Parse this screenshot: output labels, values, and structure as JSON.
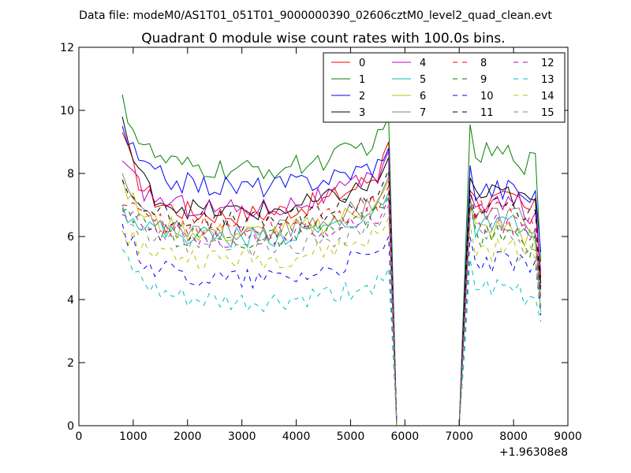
{
  "chart_data": {
    "type": "line",
    "suptitle": "Data file: modeM0/AS1T01_051T01_9000000390_02606cztM0_level2_quad_clean.evt",
    "title": "Quadrant 0 module wise count rates with 100.0s bins.",
    "xlabel": "",
    "ylabel": "",
    "xlim": [
      0,
      9000
    ],
    "ylim": [
      0,
      12
    ],
    "x_offset_label": "+1.96308e8",
    "xticks": [
      0,
      1000,
      2000,
      3000,
      4000,
      5000,
      6000,
      7000,
      8000,
      9000
    ],
    "xtick_labels": [
      "0",
      "1000",
      "2000",
      "3000",
      "4000",
      "5000",
      "6000",
      "7000",
      "8000",
      "9000"
    ],
    "yticks": [
      0,
      2,
      4,
      6,
      8,
      10,
      12
    ],
    "ytick_labels": [
      "0",
      "2",
      "4",
      "6",
      "8",
      "10",
      "12"
    ],
    "legend": {
      "location": "top-right",
      "columns": 4
    },
    "segment1": {
      "x_start": 800,
      "step": 100,
      "count": 50
    },
    "gap": {
      "x": [
        5850,
        5950,
        6050,
        6150,
        6250,
        6350,
        6450,
        6550,
        6650,
        6750,
        6850
      ],
      "value": 0
    },
    "segment2": {
      "x_start": 7000,
      "step": 100,
      "count": 16
    },
    "series": [
      {
        "name": "0",
        "color": "#ff0000",
        "dash": "solid",
        "seg1_start": 9.3,
        "seg1_base": 7.0,
        "seg1_peak": 9.0,
        "seg2_base": 7.1,
        "seg2_end": 4.7
      },
      {
        "name": "1",
        "color": "#008000",
        "dash": "solid",
        "seg1_start": 10.5,
        "seg1_base": 8.4,
        "seg1_peak": 9.8,
        "seg2_base": 8.6,
        "seg2_end": 5.2
      },
      {
        "name": "2",
        "color": "#0000ff",
        "dash": "solid",
        "seg1_start": 9.5,
        "seg1_base": 7.9,
        "seg1_peak": 8.8,
        "seg2_base": 7.5,
        "seg2_end": 5.5
      },
      {
        "name": "3",
        "color": "#000000",
        "dash": "solid",
        "seg1_start": 9.8,
        "seg1_base": 7.1,
        "seg1_peak": 8.5,
        "seg2_base": 7.3,
        "seg2_end": 4.5
      },
      {
        "name": "4",
        "color": "#bf00bf",
        "dash": "solid",
        "seg1_start": 8.4,
        "seg1_base": 7.2,
        "seg1_peak": 8.7,
        "seg2_base": 7.0,
        "seg2_end": 4.9
      },
      {
        "name": "5",
        "color": "#00bfbf",
        "dash": "solid",
        "seg1_start": 7.0,
        "seg1_base": 6.3,
        "seg1_peak": 7.4,
        "seg2_base": 6.3,
        "seg2_end": 3.6
      },
      {
        "name": "6",
        "color": "#bfbf00",
        "dash": "solid",
        "seg1_start": 7.8,
        "seg1_base": 6.4,
        "seg1_peak": 7.8,
        "seg2_base": 6.2,
        "seg2_end": 4.1
      },
      {
        "name": "7",
        "color": "#808080",
        "dash": "solid",
        "seg1_start": 8.0,
        "seg1_base": 6.5,
        "seg1_peak": 7.9,
        "seg2_base": 6.6,
        "seg2_end": 4.3
      },
      {
        "name": "8",
        "color": "#ff0000",
        "dash": "dashed",
        "seg1_start": 7.0,
        "seg1_base": 6.6,
        "seg1_peak": 7.6,
        "seg2_base": 6.8,
        "seg2_end": 4.4
      },
      {
        "name": "9",
        "color": "#008000",
        "dash": "dashed",
        "seg1_start": 6.8,
        "seg1_base": 6.2,
        "seg1_peak": 7.3,
        "seg2_base": 6.0,
        "seg2_end": 3.9
      },
      {
        "name": "10",
        "color": "#0000ff",
        "dash": "dashed",
        "seg1_start": 6.4,
        "seg1_base": 5.0,
        "seg1_peak": 6.0,
        "seg2_base": 5.2,
        "seg2_end": 3.5
      },
      {
        "name": "11",
        "color": "#000000",
        "dash": "dashed",
        "seg1_start": 7.8,
        "seg1_base": 6.8,
        "seg1_peak": 8.1,
        "seg2_base": 6.9,
        "seg2_end": 4.2
      },
      {
        "name": "12",
        "color": "#bf00bf",
        "dash": "dashed",
        "seg1_start": 6.7,
        "seg1_base": 6.3,
        "seg1_peak": 7.2,
        "seg2_base": 6.4,
        "seg2_end": 4.0
      },
      {
        "name": "13",
        "color": "#00bfbf",
        "dash": "dashed",
        "seg1_start": 5.6,
        "seg1_base": 4.2,
        "seg1_peak": 5.0,
        "seg2_base": 4.3,
        "seg2_end": 3.3
      },
      {
        "name": "14",
        "color": "#bfbf00",
        "dash": "dashed",
        "seg1_start": 6.2,
        "seg1_base": 5.6,
        "seg1_peak": 6.6,
        "seg2_base": 5.6,
        "seg2_end": 3.6
      },
      {
        "name": "15",
        "color": "#808080",
        "dash": "dashed",
        "seg1_start": 6.9,
        "seg1_base": 5.9,
        "seg1_peak": 7.0,
        "seg2_base": 6.0,
        "seg2_end": 3.8
      }
    ]
  }
}
